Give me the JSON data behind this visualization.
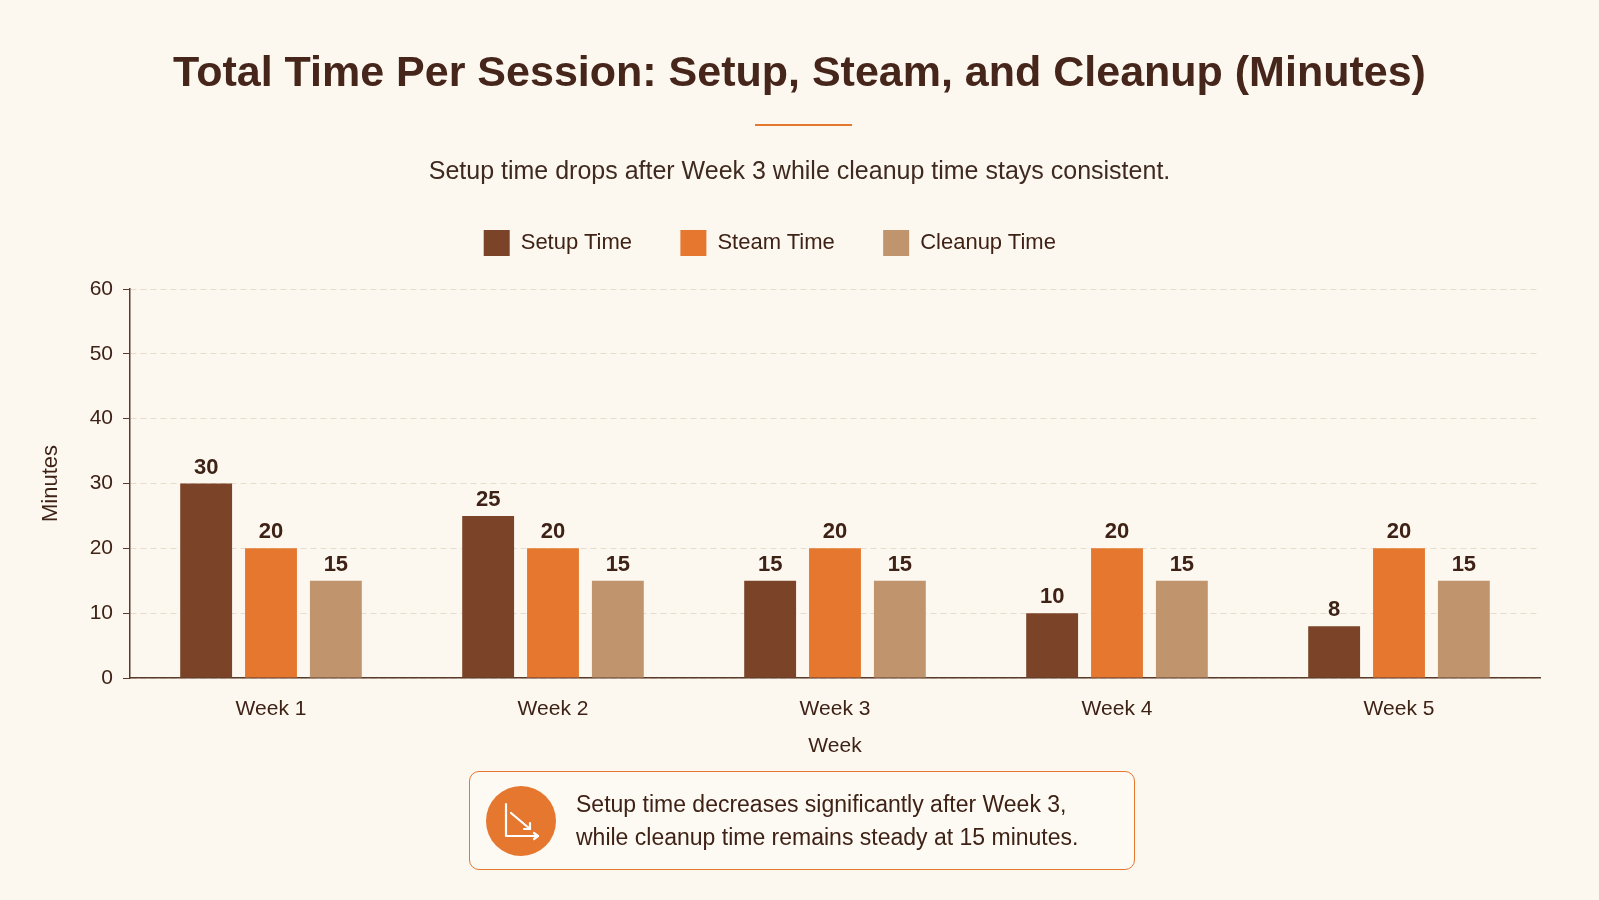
{
  "chart_data": {
    "type": "bar",
    "title": "Total Time Per Session: Setup, Steam, and Cleanup (Minutes)",
    "subtitle": "Setup time drops after Week 3 while cleanup time stays consistent.",
    "xlabel": "Week",
    "ylabel": "Minutes",
    "categories": [
      "Week 1",
      "Week 2",
      "Week 3",
      "Week 4",
      "Week 5"
    ],
    "series": [
      {
        "name": "Setup Time",
        "color": "#7b4429",
        "values": [
          30,
          25,
          15,
          10,
          8
        ]
      },
      {
        "name": "Steam Time",
        "color": "#e5772f",
        "values": [
          20,
          20,
          20,
          20,
          20
        ]
      },
      {
        "name": "Cleanup Time",
        "color": "#c0956d",
        "values": [
          15,
          15,
          15,
          15,
          15
        ]
      }
    ],
    "ylim": [
      0,
      60
    ],
    "yticks": [
      0,
      10,
      20,
      30,
      40,
      50,
      60
    ],
    "grid": "y",
    "legend": "top",
    "data_labels": true,
    "annotations": [
      "Setup time decreases significantly after Week 3, while cleanup time remains steady at 15 minutes."
    ]
  }
}
